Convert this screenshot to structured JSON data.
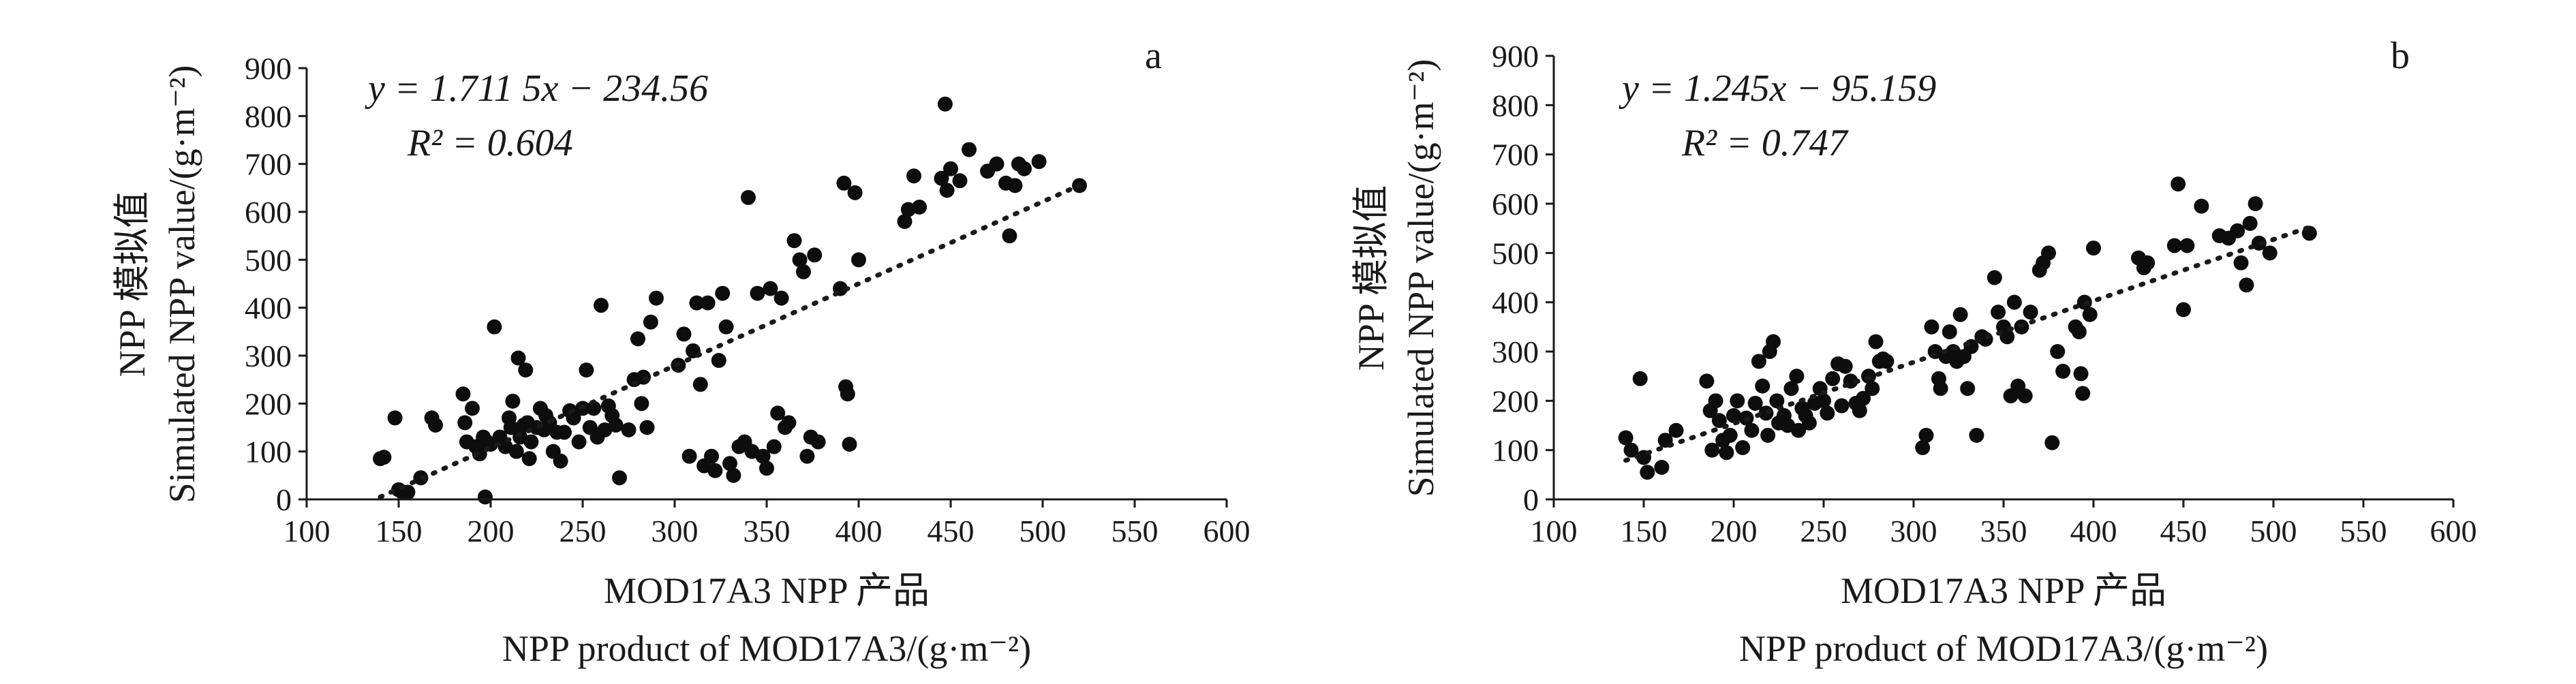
{
  "chart_data": [
    {
      "type": "scatter",
      "panel_label": "a",
      "equation": "y = 1.711 5x − 234.56",
      "r2": "R² = 0.604",
      "xlabel_cn": "MOD17A3 NPP 产品",
      "xlabel_en": "NPP product of MOD17A3/(g·m⁻²)",
      "ylabel_cn": "NPP 模拟值",
      "ylabel_en": "Simulated NPP value/(g·m⁻²)",
      "xlim": [
        100,
        600
      ],
      "ylim": [
        0,
        900
      ],
      "xticks": [
        "100",
        "150",
        "200",
        "250",
        "300",
        "350",
        "400",
        "450",
        "500",
        "550",
        "600"
      ],
      "yticks": [
        "0",
        "100",
        "200",
        "300",
        "400",
        "500",
        "600",
        "700",
        "800",
        "900"
      ],
      "trend": {
        "slope": 1.7115,
        "intercept": -234.56,
        "x_range": [
          140,
          520
        ]
      },
      "points": [
        [
          140,
          85
        ],
        [
          142,
          88
        ],
        [
          148,
          170
        ],
        [
          150,
          20
        ],
        [
          152,
          15
        ],
        [
          155,
          15
        ],
        [
          162,
          45
        ],
        [
          168,
          170
        ],
        [
          170,
          155
        ],
        [
          185,
          220
        ],
        [
          186,
          160
        ],
        [
          187,
          120
        ],
        [
          190,
          190
        ],
        [
          192,
          110
        ],
        [
          194,
          95
        ],
        [
          196,
          130
        ],
        [
          197,
          5
        ],
        [
          198,
          120
        ],
        [
          200,
          115
        ],
        [
          202,
          360
        ],
        [
          205,
          130
        ],
        [
          208,
          110
        ],
        [
          210,
          170
        ],
        [
          211,
          150
        ],
        [
          212,
          205
        ],
        [
          214,
          100
        ],
        [
          215,
          295
        ],
        [
          216,
          130
        ],
        [
          218,
          155
        ],
        [
          219,
          270
        ],
        [
          220,
          160
        ],
        [
          221,
          85
        ],
        [
          222,
          120
        ],
        [
          225,
          150
        ],
        [
          227,
          190
        ],
        [
          229,
          145
        ],
        [
          230,
          175
        ],
        [
          232,
          160
        ],
        [
          234,
          100
        ],
        [
          236,
          140
        ],
        [
          238,
          80
        ],
        [
          240,
          140
        ],
        [
          243,
          185
        ],
        [
          245,
          170
        ],
        [
          248,
          120
        ],
        [
          250,
          190
        ],
        [
          252,
          270
        ],
        [
          254,
          150
        ],
        [
          256,
          190
        ],
        [
          258,
          130
        ],
        [
          260,
          405
        ],
        [
          262,
          145
        ],
        [
          264,
          195
        ],
        [
          266,
          175
        ],
        [
          268,
          155
        ],
        [
          270,
          45
        ],
        [
          275,
          145
        ],
        [
          278,
          250
        ],
        [
          280,
          335
        ],
        [
          282,
          200
        ],
        [
          283,
          255
        ],
        [
          285,
          150
        ],
        [
          287,
          370
        ],
        [
          290,
          420
        ],
        [
          302,
          280
        ],
        [
          305,
          345
        ],
        [
          308,
          90
        ],
        [
          310,
          310
        ],
        [
          312,
          410
        ],
        [
          314,
          240
        ],
        [
          316,
          70
        ],
        [
          318,
          410
        ],
        [
          320,
          90
        ],
        [
          322,
          60
        ],
        [
          324,
          290
        ],
        [
          326,
          430
        ],
        [
          328,
          360
        ],
        [
          330,
          75
        ],
        [
          332,
          50
        ],
        [
          335,
          110
        ],
        [
          338,
          120
        ],
        [
          340,
          630
        ],
        [
          342,
          100
        ],
        [
          345,
          430
        ],
        [
          348,
          90
        ],
        [
          350,
          65
        ],
        [
          352,
          440
        ],
        [
          354,
          110
        ],
        [
          356,
          180
        ],
        [
          358,
          420
        ],
        [
          360,
          150
        ],
        [
          362,
          160
        ],
        [
          365,
          540
        ],
        [
          368,
          500
        ],
        [
          370,
          475
        ],
        [
          372,
          90
        ],
        [
          374,
          130
        ],
        [
          376,
          510
        ],
        [
          378,
          120
        ],
        [
          390,
          440
        ],
        [
          392,
          660
        ],
        [
          393,
          235
        ],
        [
          394,
          220
        ],
        [
          395,
          115
        ],
        [
          398,
          640
        ],
        [
          400,
          500
        ],
        [
          425,
          580
        ],
        [
          427,
          605
        ],
        [
          430,
          675
        ],
        [
          433,
          610
        ],
        [
          445,
          670
        ],
        [
          447,
          825
        ],
        [
          448,
          645
        ],
        [
          450,
          690
        ],
        [
          455,
          665
        ],
        [
          460,
          730
        ],
        [
          470,
          685
        ],
        [
          475,
          700
        ],
        [
          480,
          660
        ],
        [
          482,
          550
        ],
        [
          485,
          655
        ],
        [
          487,
          700
        ],
        [
          490,
          690
        ],
        [
          498,
          705
        ],
        [
          520,
          655
        ]
      ]
    },
    {
      "type": "scatter",
      "panel_label": "b",
      "equation": "y = 1.245x − 95.159",
      "r2": "R² = 0.747",
      "xlabel_cn": "MOD17A3 NPP 产品",
      "xlabel_en": "NPP product of MOD17A3/(g·m⁻²)",
      "ylabel_cn": "NPP 模拟值",
      "ylabel_en": "Simulated NPP value/(g·m⁻²)",
      "xlim": [
        100,
        600
      ],
      "ylim": [
        0,
        900
      ],
      "xticks": [
        "100",
        "150",
        "200",
        "250",
        "300",
        "350",
        "400",
        "450",
        "500",
        "550",
        "600"
      ],
      "yticks": [
        "0",
        "100",
        "200",
        "300",
        "400",
        "500",
        "600",
        "700",
        "800",
        "900"
      ],
      "trend": {
        "slope": 1.245,
        "intercept": -95.159,
        "x_range": [
          140,
          520
        ]
      },
      "points": [
        [
          140,
          125
        ],
        [
          143,
          100
        ],
        [
          148,
          245
        ],
        [
          150,
          85
        ],
        [
          152,
          55
        ],
        [
          160,
          65
        ],
        [
          162,
          120
        ],
        [
          168,
          140
        ],
        [
          185,
          240
        ],
        [
          187,
          180
        ],
        [
          188,
          100
        ],
        [
          190,
          200
        ],
        [
          192,
          160
        ],
        [
          194,
          120
        ],
        [
          196,
          95
        ],
        [
          198,
          130
        ],
        [
          200,
          170
        ],
        [
          202,
          200
        ],
        [
          205,
          105
        ],
        [
          207,
          165
        ],
        [
          210,
          140
        ],
        [
          212,
          195
        ],
        [
          214,
          280
        ],
        [
          216,
          230
        ],
        [
          218,
          175
        ],
        [
          219,
          130
        ],
        [
          220,
          300
        ],
        [
          222,
          320
        ],
        [
          224,
          200
        ],
        [
          225,
          155
        ],
        [
          228,
          170
        ],
        [
          230,
          150
        ],
        [
          232,
          225
        ],
        [
          235,
          250
        ],
        [
          236,
          140
        ],
        [
          238,
          185
        ],
        [
          240,
          170
        ],
        [
          242,
          155
        ],
        [
          245,
          195
        ],
        [
          248,
          225
        ],
        [
          250,
          200
        ],
        [
          252,
          175
        ],
        [
          255,
          245
        ],
        [
          258,
          275
        ],
        [
          260,
          190
        ],
        [
          262,
          270
        ],
        [
          265,
          240
        ],
        [
          268,
          195
        ],
        [
          270,
          180
        ],
        [
          272,
          205
        ],
        [
          275,
          250
        ],
        [
          277,
          225
        ],
        [
          279,
          320
        ],
        [
          281,
          280
        ],
        [
          283,
          285
        ],
        [
          285,
          280
        ],
        [
          305,
          105
        ],
        [
          307,
          130
        ],
        [
          310,
          350
        ],
        [
          312,
          300
        ],
        [
          314,
          245
        ],
        [
          315,
          225
        ],
        [
          318,
          290
        ],
        [
          320,
          340
        ],
        [
          322,
          300
        ],
        [
          324,
          280
        ],
        [
          326,
          375
        ],
        [
          328,
          290
        ],
        [
          330,
          225
        ],
        [
          332,
          310
        ],
        [
          335,
          130
        ],
        [
          338,
          330
        ],
        [
          340,
          325
        ],
        [
          345,
          450
        ],
        [
          347,
          380
        ],
        [
          350,
          350
        ],
        [
          352,
          330
        ],
        [
          354,
          210
        ],
        [
          356,
          400
        ],
        [
          358,
          230
        ],
        [
          360,
          350
        ],
        [
          362,
          210
        ],
        [
          365,
          380
        ],
        [
          370,
          465
        ],
        [
          372,
          480
        ],
        [
          375,
          500
        ],
        [
          377,
          115
        ],
        [
          380,
          300
        ],
        [
          383,
          260
        ],
        [
          390,
          350
        ],
        [
          392,
          340
        ],
        [
          393,
          255
        ],
        [
          394,
          215
        ],
        [
          395,
          400
        ],
        [
          398,
          375
        ],
        [
          400,
          510
        ],
        [
          425,
          490
        ],
        [
          428,
          470
        ],
        [
          430,
          480
        ],
        [
          445,
          515
        ],
        [
          447,
          640
        ],
        [
          450,
          385
        ],
        [
          452,
          515
        ],
        [
          460,
          595
        ],
        [
          470,
          535
        ],
        [
          475,
          530
        ],
        [
          480,
          545
        ],
        [
          482,
          480
        ],
        [
          485,
          435
        ],
        [
          487,
          560
        ],
        [
          490,
          600
        ],
        [
          492,
          520
        ],
        [
          498,
          500
        ],
        [
          520,
          540
        ]
      ]
    }
  ]
}
